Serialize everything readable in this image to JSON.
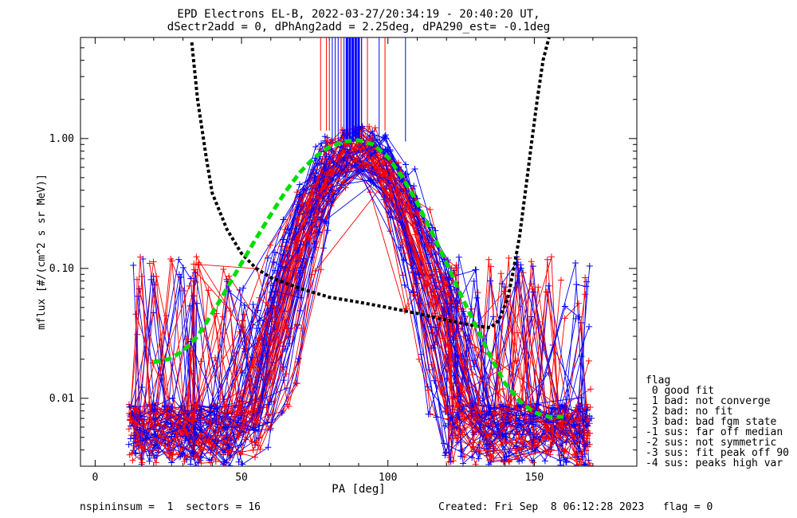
{
  "chart_data": {
    "type": "line",
    "title_line1": "EPD Electrons EL-B, 2022-03-27/20:34:19 - 20:40:20 UT,",
    "title_line2": "dSectr2add = 0, dPhAng2add = 2.25deg, dPA290_est=  -0.1deg",
    "xlabel": "PA [deg]",
    "ylabel": "mflux [#/(cm^2 s sr MeV)]",
    "xlim": [
      -5,
      185
    ],
    "ylim": [
      0.003,
      6
    ],
    "yscale": "log",
    "x_ticks": [
      0,
      50,
      100,
      150
    ],
    "x_tick_labels": [
      "0",
      "50",
      "100",
      "150"
    ],
    "y_ticks": [
      0.01,
      0.1,
      1.0
    ],
    "y_tick_labels": [
      "0.01",
      "0.10",
      "1.00"
    ],
    "colors": {
      "red": "#ff0000",
      "blue": "#0000ff",
      "black": "#000000",
      "green": "#00dd00"
    },
    "series": [
      {
        "color": "#000000",
        "style": "dotted-thick",
        "x": [
          33,
          35,
          38,
          40,
          45,
          50,
          55,
          60,
          70,
          80,
          90,
          100,
          110,
          120,
          130,
          135,
          138,
          141,
          143,
          145,
          147,
          149,
          151,
          153,
          155
        ],
        "y": [
          5.5,
          2.0,
          0.7,
          0.38,
          0.2,
          0.13,
          0.1,
          0.085,
          0.07,
          0.06,
          0.055,
          0.05,
          0.045,
          0.04,
          0.036,
          0.035,
          0.04,
          0.06,
          0.1,
          0.18,
          0.4,
          0.9,
          2.0,
          4.0,
          6.0
        ]
      },
      {
        "color": "#00dd00",
        "style": "dashed-thick",
        "x": [
          20,
          25,
          30,
          35,
          40,
          45,
          50,
          55,
          60,
          65,
          70,
          75,
          80,
          85,
          90,
          95,
          100,
          105,
          110,
          115,
          120,
          125,
          130,
          135,
          140,
          145,
          150,
          155,
          160
        ],
        "y": [
          0.019,
          0.02,
          0.023,
          0.03,
          0.045,
          0.07,
          0.11,
          0.17,
          0.26,
          0.39,
          0.55,
          0.72,
          0.86,
          0.95,
          0.97,
          0.9,
          0.72,
          0.5,
          0.32,
          0.19,
          0.11,
          0.062,
          0.036,
          0.021,
          0.013,
          0.0095,
          0.0078,
          0.0072,
          0.0072
        ]
      }
    ],
    "bundle": {
      "peak_x": 90,
      "peak_y": 0.85,
      "base_pa": [
        13,
        15,
        20,
        25,
        30,
        33,
        35,
        40,
        45,
        50,
        55,
        60,
        65,
        70,
        75,
        78,
        80,
        85,
        90,
        95,
        100,
        105,
        110,
        115,
        120,
        122,
        125,
        130,
        135,
        140,
        145,
        150,
        155,
        160,
        165,
        168
      ]
    },
    "peak_lines": {
      "red_x": [
        77,
        79,
        80,
        84,
        88,
        91,
        93,
        99
      ],
      "blue_x": [
        81,
        82,
        83,
        85,
        86,
        87,
        88,
        89,
        90,
        91,
        97,
        106
      ]
    }
  },
  "legend": {
    "title": "flag",
    "items": [
      " 0 good fit",
      " 1 bad: not converge",
      " 2 bad: no fit",
      " 3 bad: bad fgm state",
      "-1 sus: far off median",
      "-2 sus: not symmetric",
      "-3 sus: fit peak off 90",
      "-4 sus: peaks high var"
    ]
  },
  "footer": {
    "left": "nspininsum =  1  sectors = 16",
    "right": "Created: Fri Sep  8 06:12:28 2023   flag = 0"
  }
}
